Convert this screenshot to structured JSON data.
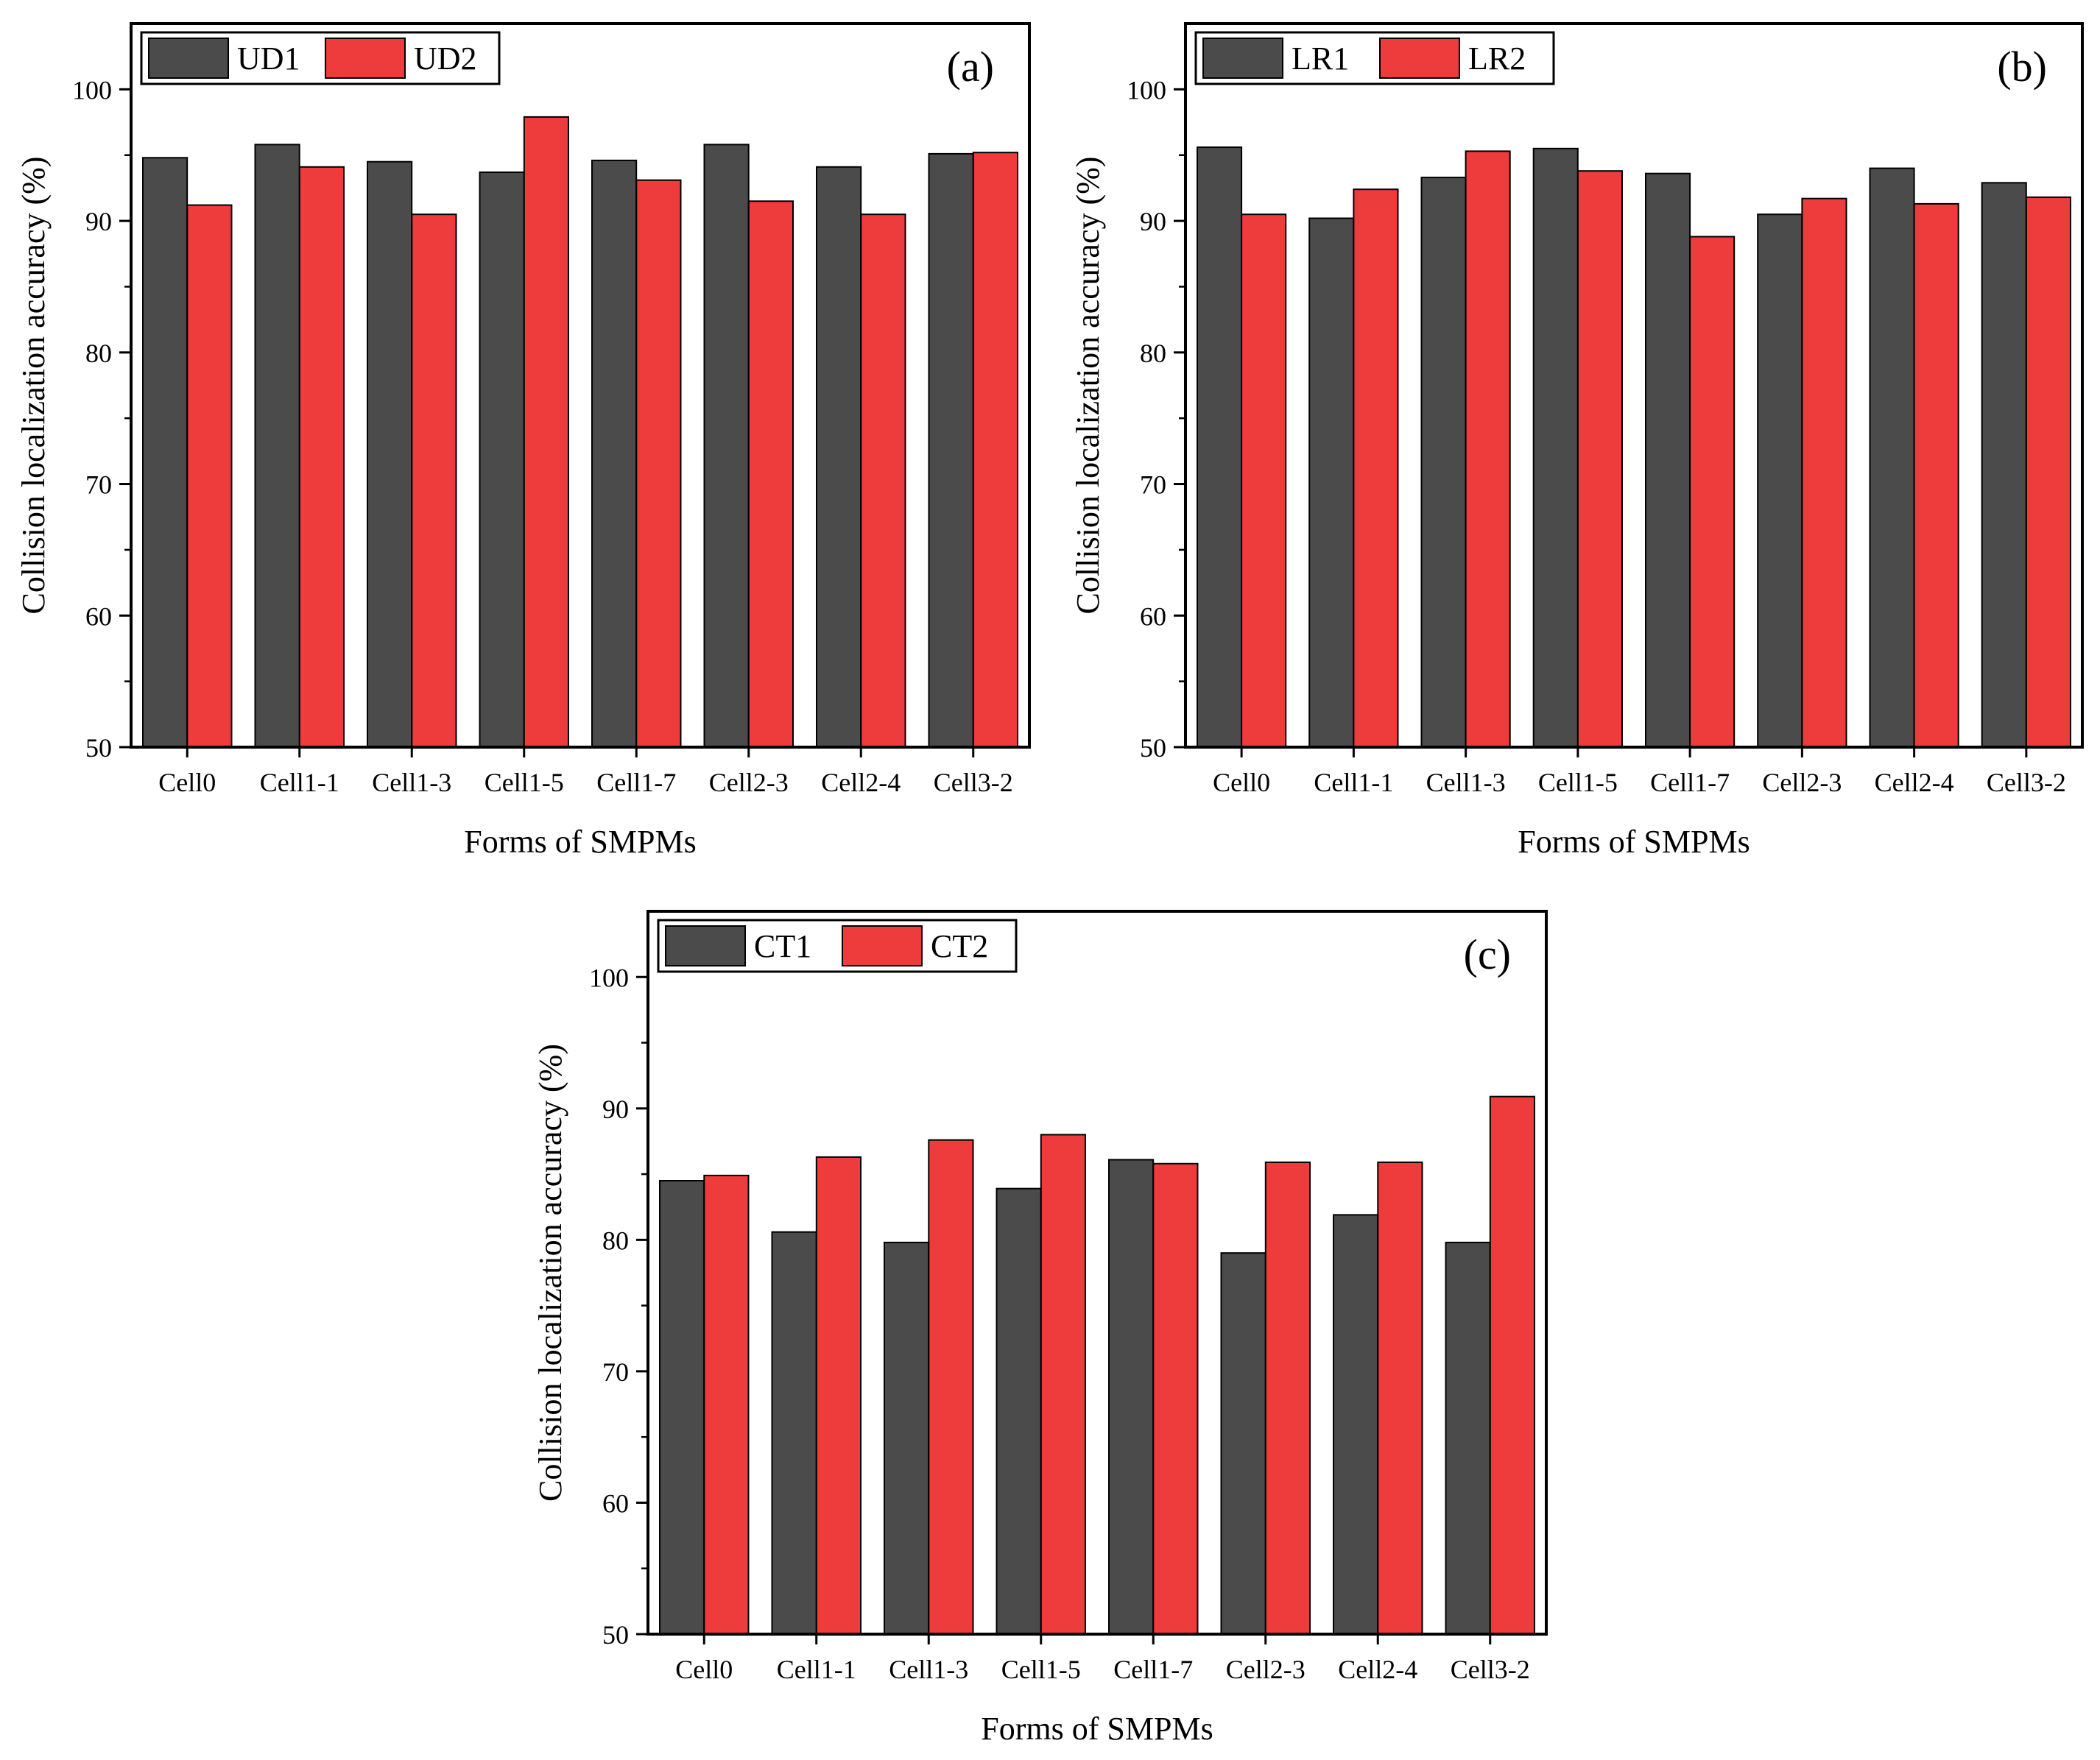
{
  "colors": {
    "series1": "#4b4b4b",
    "series2": "#ee3b3b",
    "axis": "#000000"
  },
  "chart_data": [
    {
      "type": "bar",
      "panel_label": "(a)",
      "categories": [
        "Cell0",
        "Cell1-1",
        "Cell1-3",
        "Cell1-5",
        "Cell1-7",
        "Cell2-3",
        "Cell2-4",
        "Cell3-2"
      ],
      "series": [
        {
          "name": "UD1",
          "values": [
            94.8,
            95.8,
            94.5,
            93.7,
            94.6,
            95.8,
            94.1,
            95.1
          ]
        },
        {
          "name": "UD2",
          "values": [
            91.2,
            94.1,
            90.5,
            97.9,
            93.1,
            91.5,
            90.5,
            95.2
          ]
        }
      ],
      "xlabel": "Forms of SMPMs",
      "ylabel": "Collision localization accuracy (%)",
      "ylim": [
        50,
        105
      ],
      "yticks": [
        50,
        60,
        70,
        80,
        90,
        100
      ],
      "legend": "top-left"
    },
    {
      "type": "bar",
      "panel_label": "(b)",
      "categories": [
        "Cell0",
        "Cell1-1",
        "Cell1-3",
        "Cell1-5",
        "Cell1-7",
        "Cell2-3",
        "Cell2-4",
        "Cell3-2"
      ],
      "series": [
        {
          "name": "LR1",
          "values": [
            95.6,
            90.2,
            93.3,
            95.5,
            93.6,
            90.5,
            94.0,
            92.9
          ]
        },
        {
          "name": "LR2",
          "values": [
            90.5,
            92.4,
            95.3,
            93.8,
            88.8,
            91.7,
            91.3,
            91.8
          ]
        }
      ],
      "xlabel": "Forms of SMPMs",
      "ylabel": "Collision localization accuracy (%)",
      "ylim": [
        50,
        105
      ],
      "yticks": [
        50,
        60,
        70,
        80,
        90,
        100
      ],
      "legend": "top-left"
    },
    {
      "type": "bar",
      "panel_label": "(c)",
      "categories": [
        "Cell0",
        "Cell1-1",
        "Cell1-3",
        "Cell1-5",
        "Cell1-7",
        "Cell2-3",
        "Cell2-4",
        "Cell3-2"
      ],
      "series": [
        {
          "name": "CT1",
          "values": [
            84.5,
            80.6,
            79.8,
            83.9,
            86.1,
            79.0,
            81.9,
            79.8
          ]
        },
        {
          "name": "CT2",
          "values": [
            84.9,
            86.3,
            87.6,
            88.0,
            85.8,
            85.9,
            85.9,
            90.9
          ]
        }
      ],
      "xlabel": "Forms of SMPMs",
      "ylabel": "Collision localization accuracy (%)",
      "ylim": [
        50,
        105
      ],
      "yticks": [
        50,
        60,
        70,
        80,
        90,
        100
      ],
      "legend": "top-left"
    }
  ]
}
